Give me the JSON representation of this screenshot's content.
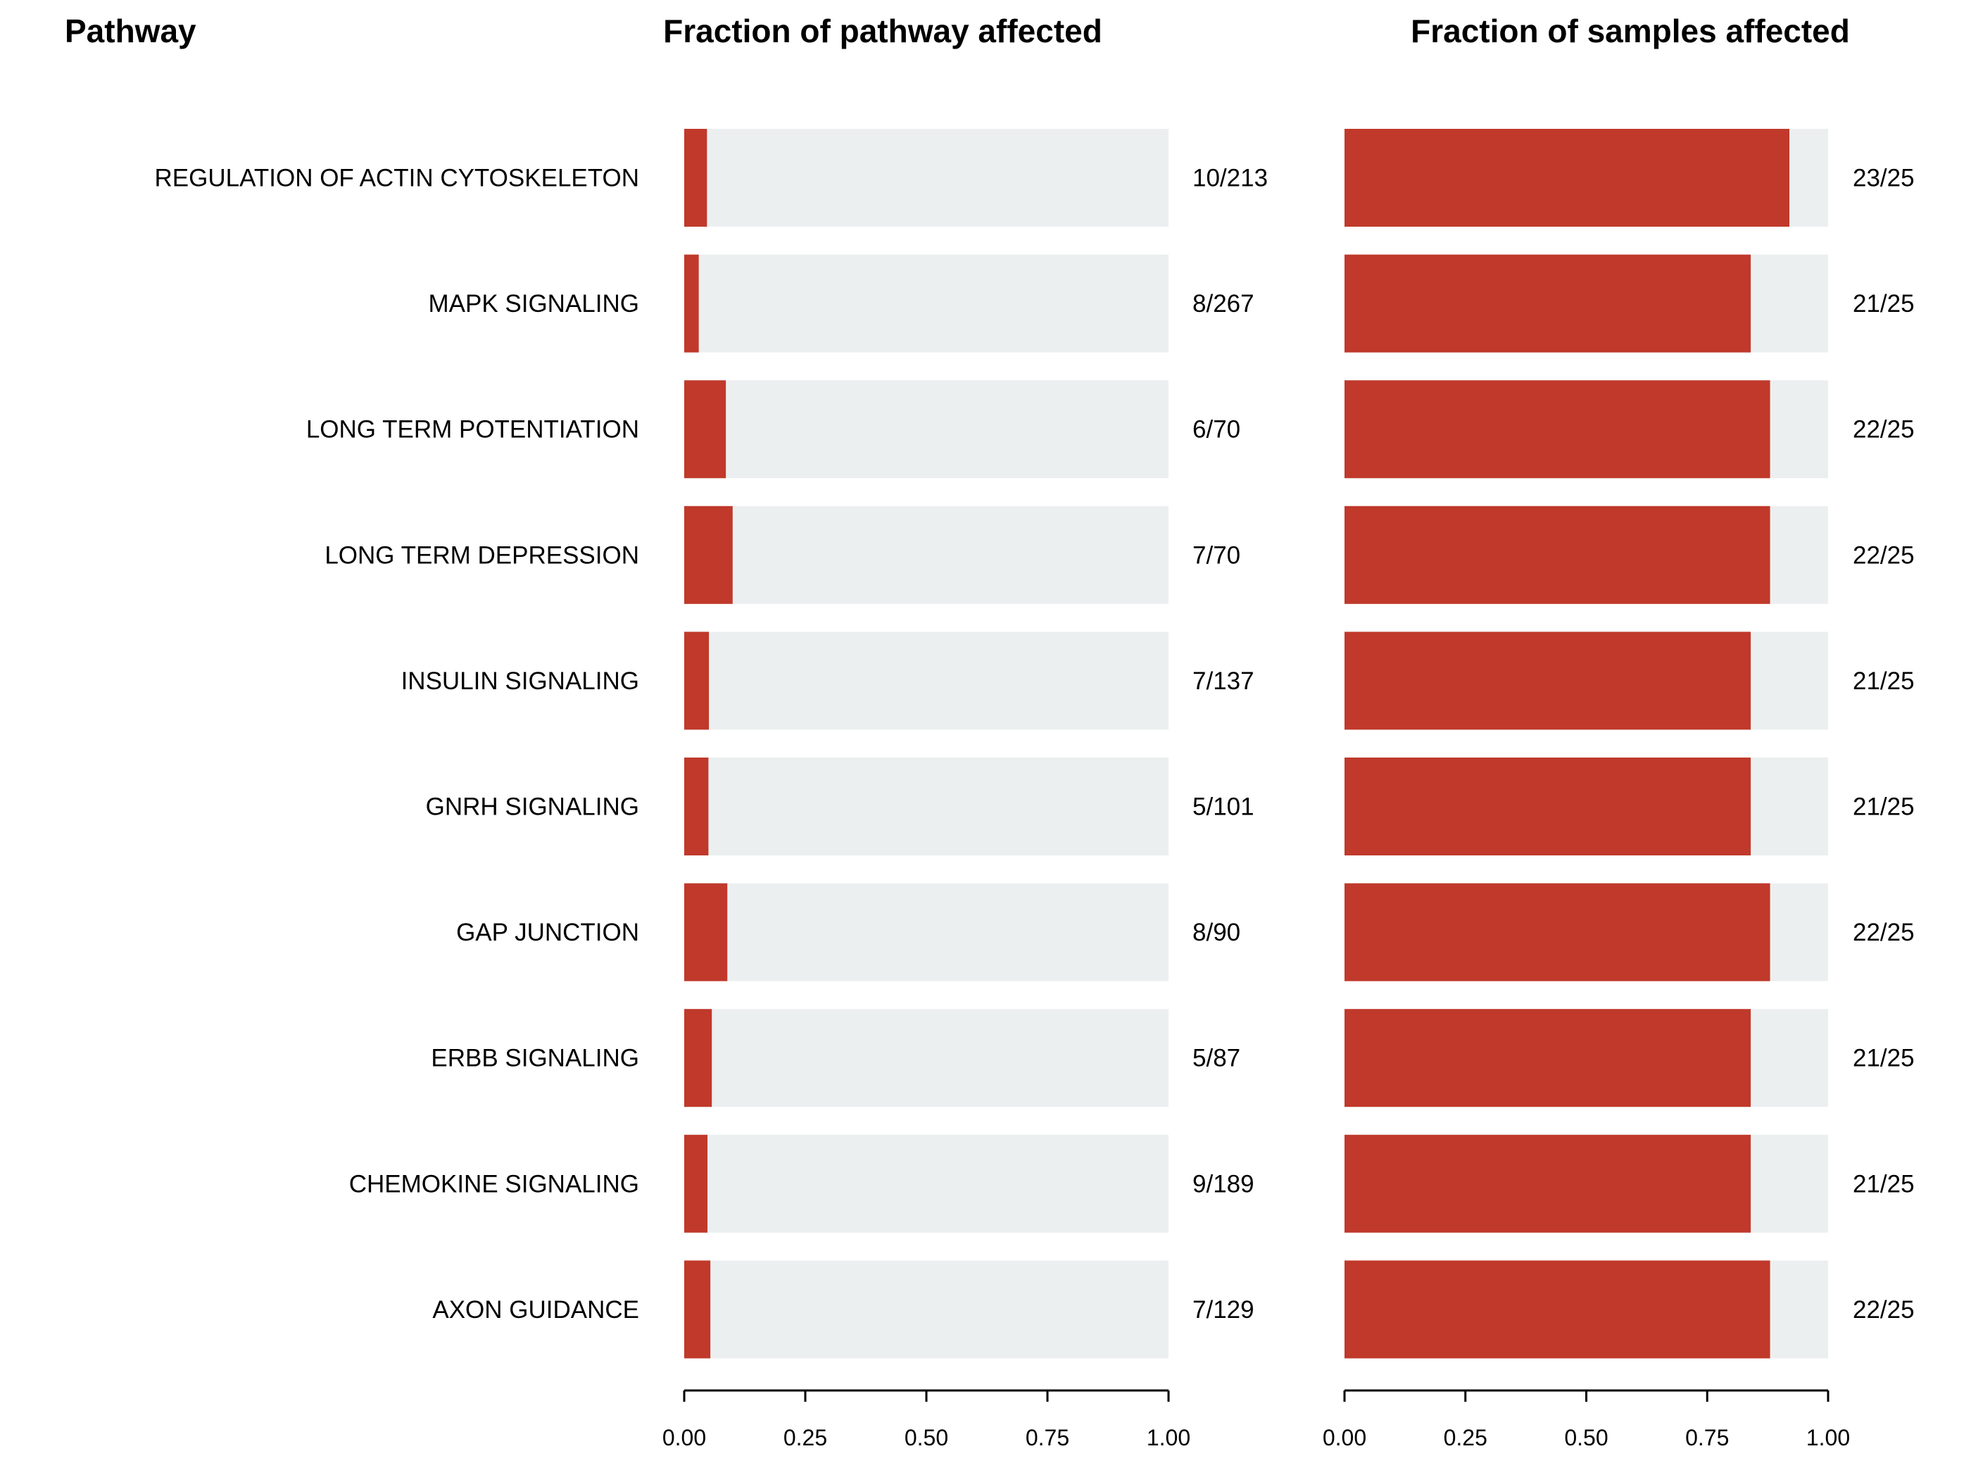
{
  "chart_data": {
    "type": "bar",
    "orientation": "horizontal",
    "categories": [
      "REGULATION OF ACTIN CYTOSKELETON",
      "MAPK SIGNALING",
      "LONG TERM POTENTIATION",
      "LONG TERM DEPRESSION",
      "INSULIN SIGNALING",
      "GNRH SIGNALING",
      "GAP JUNCTION",
      "ERBB SIGNALING",
      "CHEMOKINE SIGNALING",
      "AXON GUIDANCE"
    ],
    "category_header": "Pathway",
    "panels": [
      {
        "title": "Fraction of pathway affected",
        "xlim": [
          0,
          1
        ],
        "ticks": [
          "0.00",
          "0.25",
          "0.50",
          "0.75",
          "1.00"
        ],
        "values": [
          0.047,
          0.03,
          0.086,
          0.1,
          0.051,
          0.05,
          0.089,
          0.057,
          0.048,
          0.054
        ],
        "labels": [
          "10/213",
          "8/267",
          "6/70",
          "7/70",
          "7/137",
          "5/101",
          "8/90",
          "5/87",
          "9/189",
          "7/129"
        ]
      },
      {
        "title": "Fraction of samples affected",
        "xlim": [
          0,
          1
        ],
        "ticks": [
          "0.00",
          "0.25",
          "0.50",
          "0.75",
          "1.00"
        ],
        "values": [
          0.92,
          0.84,
          0.88,
          0.88,
          0.84,
          0.84,
          0.88,
          0.84,
          0.84,
          0.88
        ],
        "labels": [
          "23/25",
          "21/25",
          "22/25",
          "22/25",
          "21/25",
          "21/25",
          "22/25",
          "21/25",
          "21/25",
          "22/25"
        ]
      }
    ],
    "colors": {
      "bar": "#c0392b",
      "background_bar": "#eceff0",
      "axis": "#000000"
    },
    "grid": false,
    "legend": "none"
  }
}
